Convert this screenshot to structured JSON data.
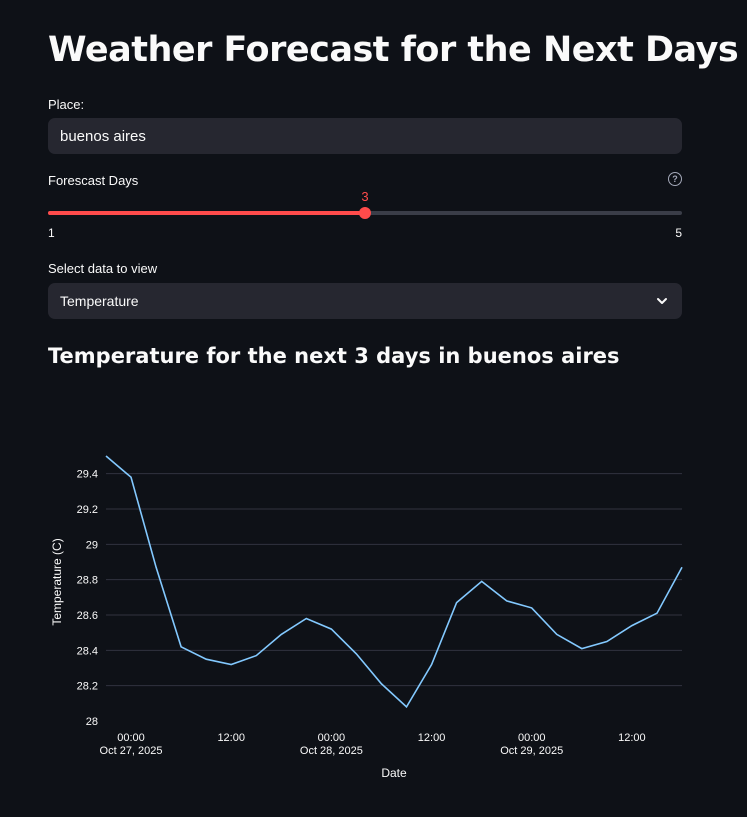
{
  "page": {
    "title": "Weather Forecast for the Next Days",
    "place_label": "Place:",
    "place_value": "buenos aires",
    "days_label": "Forescast Days",
    "help_icon": "question-circle-icon",
    "slider": {
      "min": 1,
      "max": 5,
      "value": 3,
      "min_label": "1",
      "max_label": "5",
      "value_label": "3"
    },
    "select_label": "Select data to view",
    "select_value": "Temperature",
    "chart_heading": "Temperature for the next 3 days in buenos aires"
  },
  "colors": {
    "accent": "#ff4b4b",
    "line": "#83c9ff",
    "input_bg": "#262730",
    "bg": "#0e1117"
  },
  "chart_data": {
    "type": "line",
    "title": "",
    "xlabel": "Date",
    "ylabel": "Temperature (C)",
    "ylim": [
      28,
      29.5
    ],
    "yticks": [
      28,
      28.2,
      28.4,
      28.6,
      28.8,
      29,
      29.2,
      29.4
    ],
    "ytick_labels": [
      "28",
      "28.2",
      "28.4",
      "28.6",
      "28.8",
      "29",
      "29.2",
      "29.4"
    ],
    "xrange": [
      "2025-10-26 21:00",
      "2025-10-29 18:00"
    ],
    "xticks": [
      {
        "t": "2025-10-27 00:00",
        "label": "00:00",
        "sublabel": "Oct 27, 2025"
      },
      {
        "t": "2025-10-27 12:00",
        "label": "12:00",
        "sublabel": ""
      },
      {
        "t": "2025-10-28 00:00",
        "label": "00:00",
        "sublabel": "Oct 28, 2025"
      },
      {
        "t": "2025-10-28 12:00",
        "label": "12:00",
        "sublabel": ""
      },
      {
        "t": "2025-10-29 00:00",
        "label": "00:00",
        "sublabel": "Oct 29, 2025"
      },
      {
        "t": "2025-10-29 12:00",
        "label": "12:00",
        "sublabel": ""
      }
    ],
    "grid": true,
    "series": [
      {
        "x": [
          "2025-10-26 21:00",
          "2025-10-27 00:00",
          "2025-10-27 03:00",
          "2025-10-27 06:00",
          "2025-10-27 09:00",
          "2025-10-27 12:00",
          "2025-10-27 15:00",
          "2025-10-27 18:00",
          "2025-10-27 21:00",
          "2025-10-28 00:00",
          "2025-10-28 03:00",
          "2025-10-28 06:00",
          "2025-10-28 09:00",
          "2025-10-28 12:00",
          "2025-10-28 15:00",
          "2025-10-28 18:00",
          "2025-10-28 21:00",
          "2025-10-29 00:00",
          "2025-10-29 03:00",
          "2025-10-29 06:00",
          "2025-10-29 09:00",
          "2025-10-29 12:00",
          "2025-10-29 15:00",
          "2025-10-29 18:00"
        ],
        "values": [
          29.5,
          29.38,
          28.87,
          28.42,
          28.35,
          28.32,
          28.37,
          28.49,
          28.58,
          28.52,
          28.38,
          28.21,
          28.08,
          28.32,
          28.67,
          28.79,
          28.68,
          28.64,
          28.49,
          28.41,
          28.45,
          28.54,
          28.61,
          28.87
        ]
      }
    ]
  }
}
